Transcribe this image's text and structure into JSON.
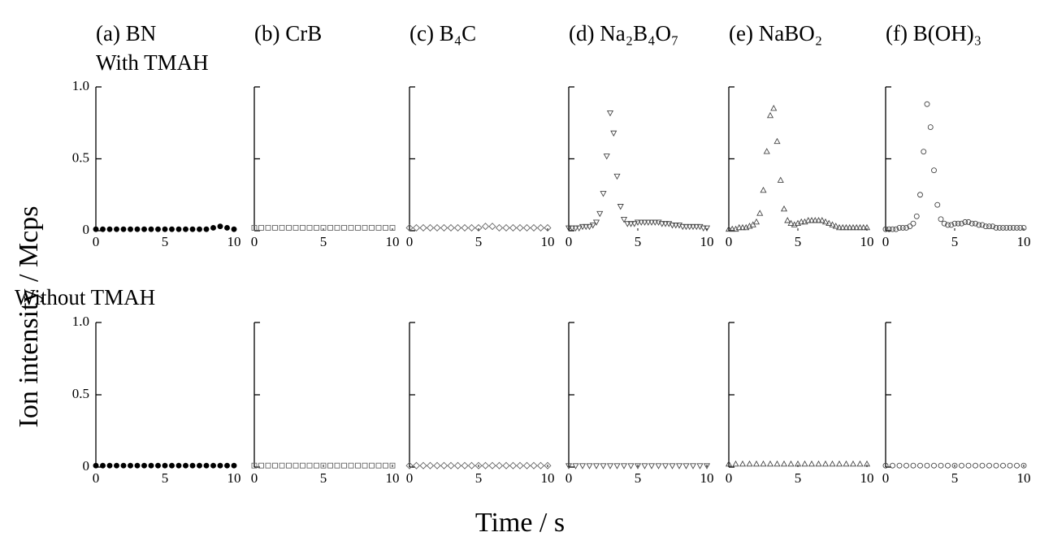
{
  "chart_data": [
    {
      "type": "scatter",
      "title": "(a) BN",
      "marker": "circle-filled",
      "color": "#000000",
      "xlim": [
        0,
        10
      ],
      "ylim": [
        0,
        1
      ],
      "xticks": [
        0,
        5,
        10
      ],
      "yticks": [
        0,
        0.5,
        {
          "value": 1,
          "label": "1.0"
        }
      ],
      "x": [
        0,
        0.5,
        1,
        1.5,
        2,
        2.5,
        3,
        3.5,
        4,
        4.5,
        5,
        5.5,
        6,
        6.5,
        7,
        7.5,
        8,
        8.5,
        9,
        9.5,
        10
      ],
      "values": [
        0.01,
        0.01,
        0.01,
        0.01,
        0.01,
        0.01,
        0.01,
        0.01,
        0.01,
        0.01,
        0.01,
        0.01,
        0.01,
        0.01,
        0.01,
        0.01,
        0.01,
        0.02,
        0.03,
        0.02,
        0.01
      ]
    },
    {
      "type": "scatter",
      "title": "(b) CrB",
      "marker": "square",
      "color": "#666666",
      "xlim": [
        0,
        10
      ],
      "ylim": [
        0,
        1
      ],
      "xticks": [
        0,
        5,
        10
      ],
      "yticks": [
        0,
        0.5,
        1
      ],
      "x": [
        0,
        0.5,
        1,
        1.5,
        2,
        2.5,
        3,
        3.5,
        4,
        4.5,
        5,
        5.5,
        6,
        6.5,
        7,
        7.5,
        8,
        8.5,
        9,
        9.5,
        10
      ],
      "values": [
        0.02,
        0.02,
        0.02,
        0.02,
        0.02,
        0.02,
        0.02,
        0.02,
        0.02,
        0.02,
        0.02,
        0.02,
        0.02,
        0.02,
        0.02,
        0.02,
        0.02,
        0.02,
        0.02,
        0.02,
        0.02
      ]
    },
    {
      "type": "scatter",
      "title": "(c) B₄C",
      "marker": "diamond",
      "color": "#666666",
      "xlim": [
        0,
        10
      ],
      "ylim": [
        0,
        1
      ],
      "xticks": [
        0,
        5,
        10
      ],
      "yticks": [
        0,
        0.5,
        1
      ],
      "x": [
        0,
        0.5,
        1,
        1.5,
        2,
        2.5,
        3,
        3.5,
        4,
        4.5,
        5,
        5.5,
        6,
        6.5,
        7,
        7.5,
        8,
        8.5,
        9,
        9.5,
        10
      ],
      "values": [
        0.02,
        0.02,
        0.02,
        0.02,
        0.02,
        0.02,
        0.02,
        0.02,
        0.02,
        0.02,
        0.02,
        0.03,
        0.03,
        0.02,
        0.02,
        0.02,
        0.02,
        0.02,
        0.02,
        0.02,
        0.02
      ]
    },
    {
      "type": "scatter",
      "title": "(d) Na₂B₄O₇",
      "marker": "triangle-down",
      "color": "#444444",
      "xlim": [
        0,
        10
      ],
      "ylim": [
        0,
        1
      ],
      "xticks": [
        0,
        5,
        10
      ],
      "yticks": [
        0,
        0.5,
        1
      ],
      "x": [
        0,
        0.25,
        0.5,
        0.75,
        1,
        1.25,
        1.5,
        1.75,
        2,
        2.25,
        2.5,
        2.75,
        3,
        3.25,
        3.5,
        3.75,
        4,
        4.25,
        4.5,
        4.75,
        5,
        5.25,
        5.5,
        5.75,
        6,
        6.25,
        6.5,
        6.75,
        7,
        7.25,
        7.5,
        7.75,
        8,
        8.25,
        8.5,
        8.75,
        9,
        9.25,
        9.5,
        9.75,
        10
      ],
      "values": [
        0.02,
        0.02,
        0.02,
        0.02,
        0.03,
        0.03,
        0.03,
        0.04,
        0.06,
        0.12,
        0.26,
        0.52,
        0.82,
        0.68,
        0.38,
        0.17,
        0.08,
        0.05,
        0.05,
        0.05,
        0.06,
        0.06,
        0.06,
        0.06,
        0.06,
        0.06,
        0.06,
        0.05,
        0.05,
        0.05,
        0.04,
        0.04,
        0.04,
        0.03,
        0.03,
        0.03,
        0.03,
        0.03,
        0.03,
        0.02,
        0.02
      ]
    },
    {
      "type": "scatter",
      "title": "(e) NaBO₂",
      "marker": "triangle-up",
      "color": "#444444",
      "xlim": [
        0,
        10
      ],
      "ylim": [
        0,
        1
      ],
      "xticks": [
        0,
        5,
        10
      ],
      "yticks": [
        0,
        0.5,
        1
      ],
      "x": [
        0,
        0.25,
        0.5,
        0.75,
        1,
        1.25,
        1.5,
        1.75,
        2,
        2.25,
        2.5,
        2.75,
        3,
        3.25,
        3.5,
        3.75,
        4,
        4.25,
        4.5,
        4.75,
        5,
        5.25,
        5.5,
        5.75,
        6,
        6.25,
        6.5,
        6.75,
        7,
        7.25,
        7.5,
        7.75,
        8,
        8.25,
        8.5,
        8.75,
        9,
        9.25,
        9.5,
        9.75,
        10
      ],
      "values": [
        0.01,
        0.01,
        0.01,
        0.02,
        0.02,
        0.02,
        0.03,
        0.04,
        0.06,
        0.12,
        0.28,
        0.55,
        0.8,
        0.85,
        0.62,
        0.35,
        0.15,
        0.07,
        0.05,
        0.04,
        0.05,
        0.06,
        0.06,
        0.07,
        0.07,
        0.07,
        0.07,
        0.07,
        0.06,
        0.05,
        0.04,
        0.03,
        0.02,
        0.02,
        0.02,
        0.02,
        0.02,
        0.02,
        0.02,
        0.02,
        0.02
      ]
    },
    {
      "type": "scatter",
      "title": "(f) B(OH)₃",
      "marker": "circle",
      "color": "#444444",
      "xlim": [
        0,
        10
      ],
      "ylim": [
        0,
        1
      ],
      "xticks": [
        0,
        5,
        10
      ],
      "yticks": [
        0,
        0.5,
        1
      ],
      "x": [
        0,
        0.25,
        0.5,
        0.75,
        1,
        1.25,
        1.5,
        1.75,
        2,
        2.25,
        2.5,
        2.75,
        3,
        3.25,
        3.5,
        3.75,
        4,
        4.25,
        4.5,
        4.75,
        5,
        5.25,
        5.5,
        5.75,
        6,
        6.25,
        6.5,
        6.75,
        7,
        7.25,
        7.5,
        7.75,
        8,
        8.25,
        8.5,
        8.75,
        9,
        9.25,
        9.5,
        9.75,
        10
      ],
      "values": [
        0.01,
        0.01,
        0.01,
        0.01,
        0.02,
        0.02,
        0.02,
        0.03,
        0.05,
        0.1,
        0.25,
        0.55,
        0.88,
        0.72,
        0.42,
        0.18,
        0.08,
        0.05,
        0.04,
        0.04,
        0.05,
        0.05,
        0.05,
        0.06,
        0.06,
        0.05,
        0.05,
        0.04,
        0.04,
        0.03,
        0.03,
        0.03,
        0.02,
        0.02,
        0.02,
        0.02,
        0.02,
        0.02,
        0.02,
        0.02,
        0.02
      ]
    },
    {
      "type": "scatter",
      "marker": "circle-filled",
      "color": "#000000",
      "xlim": [
        0,
        10
      ],
      "ylim": [
        0,
        1
      ],
      "xticks": [
        0,
        5,
        10
      ],
      "yticks": [
        0,
        0.5,
        {
          "value": 1,
          "label": "1.0"
        }
      ],
      "x": [
        0,
        0.5,
        1,
        1.5,
        2,
        2.5,
        3,
        3.5,
        4,
        4.5,
        5,
        5.5,
        6,
        6.5,
        7,
        7.5,
        8,
        8.5,
        9,
        9.5,
        10
      ],
      "values": [
        0.01,
        0.01,
        0.01,
        0.01,
        0.01,
        0.01,
        0.01,
        0.01,
        0.01,
        0.01,
        0.01,
        0.01,
        0.01,
        0.01,
        0.01,
        0.01,
        0.01,
        0.01,
        0.01,
        0.01,
        0.01
      ]
    },
    {
      "type": "scatter",
      "marker": "square",
      "color": "#666666",
      "xlim": [
        0,
        10
      ],
      "ylim": [
        0,
        1
      ],
      "xticks": [
        0,
        5,
        10
      ],
      "yticks": [
        0,
        0.5,
        1
      ],
      "x": [
        0,
        0.5,
        1,
        1.5,
        2,
        2.5,
        3,
        3.5,
        4,
        4.5,
        5,
        5.5,
        6,
        6.5,
        7,
        7.5,
        8,
        8.5,
        9,
        9.5,
        10
      ],
      "values": [
        0.01,
        0.01,
        0.01,
        0.01,
        0.01,
        0.01,
        0.01,
        0.01,
        0.01,
        0.01,
        0.01,
        0.01,
        0.01,
        0.01,
        0.01,
        0.01,
        0.01,
        0.01,
        0.01,
        0.01,
        0.01
      ]
    },
    {
      "type": "scatter",
      "marker": "diamond",
      "color": "#666666",
      "xlim": [
        0,
        10
      ],
      "ylim": [
        0,
        1
      ],
      "xticks": [
        0,
        5,
        10
      ],
      "yticks": [
        0,
        0.5,
        1
      ],
      "x": [
        0,
        0.5,
        1,
        1.5,
        2,
        2.5,
        3,
        3.5,
        4,
        4.5,
        5,
        5.5,
        6,
        6.5,
        7,
        7.5,
        8,
        8.5,
        9,
        9.5,
        10
      ],
      "values": [
        0.01,
        0.01,
        0.01,
        0.01,
        0.01,
        0.01,
        0.01,
        0.01,
        0.01,
        0.01,
        0.01,
        0.01,
        0.01,
        0.01,
        0.01,
        0.01,
        0.01,
        0.01,
        0.01,
        0.01,
        0.01
      ]
    },
    {
      "type": "scatter",
      "marker": "triangle-down",
      "color": "#444444",
      "xlim": [
        0,
        10
      ],
      "ylim": [
        0,
        1
      ],
      "xticks": [
        0,
        5,
        10
      ],
      "yticks": [
        0,
        0.5,
        1
      ],
      "x": [
        0,
        0.5,
        1,
        1.5,
        2,
        2.5,
        3,
        3.5,
        4,
        4.5,
        5,
        5.5,
        6,
        6.5,
        7,
        7.5,
        8,
        8.5,
        9,
        9.5,
        10
      ],
      "values": [
        0.01,
        0.01,
        0.01,
        0.01,
        0.01,
        0.01,
        0.01,
        0.01,
        0.01,
        0.01,
        0.01,
        0.01,
        0.01,
        0.01,
        0.01,
        0.01,
        0.01,
        0.01,
        0.01,
        0.01,
        0.01
      ]
    },
    {
      "type": "scatter",
      "marker": "triangle-up",
      "color": "#444444",
      "xlim": [
        0,
        10
      ],
      "ylim": [
        0,
        1
      ],
      "xticks": [
        0,
        5,
        10
      ],
      "yticks": [
        0,
        0.5,
        1
      ],
      "x": [
        0,
        0.5,
        1,
        1.5,
        2,
        2.5,
        3,
        3.5,
        4,
        4.5,
        5,
        5.5,
        6,
        6.5,
        7,
        7.5,
        8,
        8.5,
        9,
        9.5,
        10
      ],
      "values": [
        0.02,
        0.02,
        0.02,
        0.02,
        0.02,
        0.02,
        0.02,
        0.02,
        0.02,
        0.02,
        0.02,
        0.02,
        0.02,
        0.02,
        0.02,
        0.02,
        0.02,
        0.02,
        0.02,
        0.02,
        0.02
      ]
    },
    {
      "type": "scatter",
      "marker": "circle",
      "color": "#444444",
      "xlim": [
        0,
        10
      ],
      "ylim": [
        0,
        1
      ],
      "xticks": [
        0,
        5,
        10
      ],
      "yticks": [
        0,
        0.5,
        1
      ],
      "x": [
        0,
        0.5,
        1,
        1.5,
        2,
        2.5,
        3,
        3.5,
        4,
        4.5,
        5,
        5.5,
        6,
        6.5,
        7,
        7.5,
        8,
        8.5,
        9,
        9.5,
        10
      ],
      "values": [
        0.01,
        0.01,
        0.01,
        0.01,
        0.01,
        0.01,
        0.01,
        0.01,
        0.01,
        0.01,
        0.01,
        0.01,
        0.01,
        0.01,
        0.01,
        0.01,
        0.01,
        0.01,
        0.01,
        0.01,
        0.01
      ]
    }
  ],
  "row_labels": [
    "With TMAH",
    "Without TMAH"
  ],
  "ylabel": "Ion intensity / Mcps",
  "xlabel": "Time / s"
}
